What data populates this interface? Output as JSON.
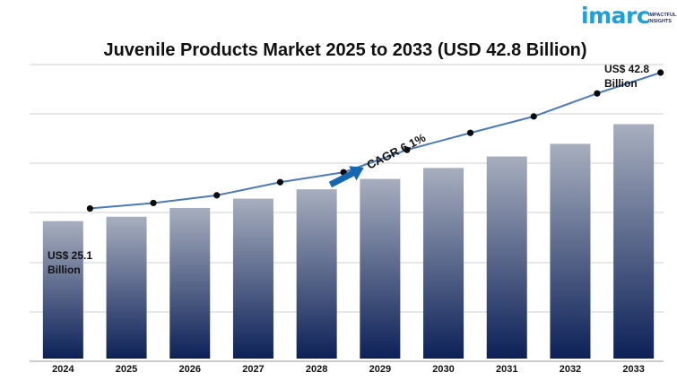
{
  "logo": {
    "brand": "imarc",
    "tagline_line1": "IMPACTFUL",
    "tagline_line2": "INSIGHTS",
    "color": "#1aa0dc"
  },
  "chart_data": {
    "type": "bar",
    "title": "Juvenile Products Market 2025 to 2033 (USD 42.8 Billion)",
    "xlabel": "",
    "ylabel": "",
    "categories": [
      "2024",
      "2025",
      "2026",
      "2027",
      "2028",
      "2029",
      "2030",
      "2031",
      "2032",
      "2033"
    ],
    "values": [
      25.1,
      25.9,
      27.5,
      29.2,
      30.9,
      32.8,
      34.8,
      36.9,
      39.2,
      42.8
    ],
    "trend_line": [
      27.4,
      28.4,
      29.8,
      32.2,
      34.0,
      38.1,
      41.2,
      44.2,
      48.4,
      52.2
    ],
    "ylim": [
      0,
      54
    ],
    "grid": true,
    "annotations": {
      "start_line1": "US$ 25.1",
      "start_line2": "Billion",
      "end_line1": "US$ 42.8",
      "end_line2": "Billion",
      "cagr": "CAGR 6.1%"
    },
    "colors": {
      "bar_top": "#a7aebe",
      "bar_bottom": "#0d2158",
      "line": "#4a7ab8",
      "marker": "#0b0b0b",
      "arrow": "#1366b2",
      "grid": "#d0d0d0",
      "axis": "#9a9a9a"
    }
  }
}
